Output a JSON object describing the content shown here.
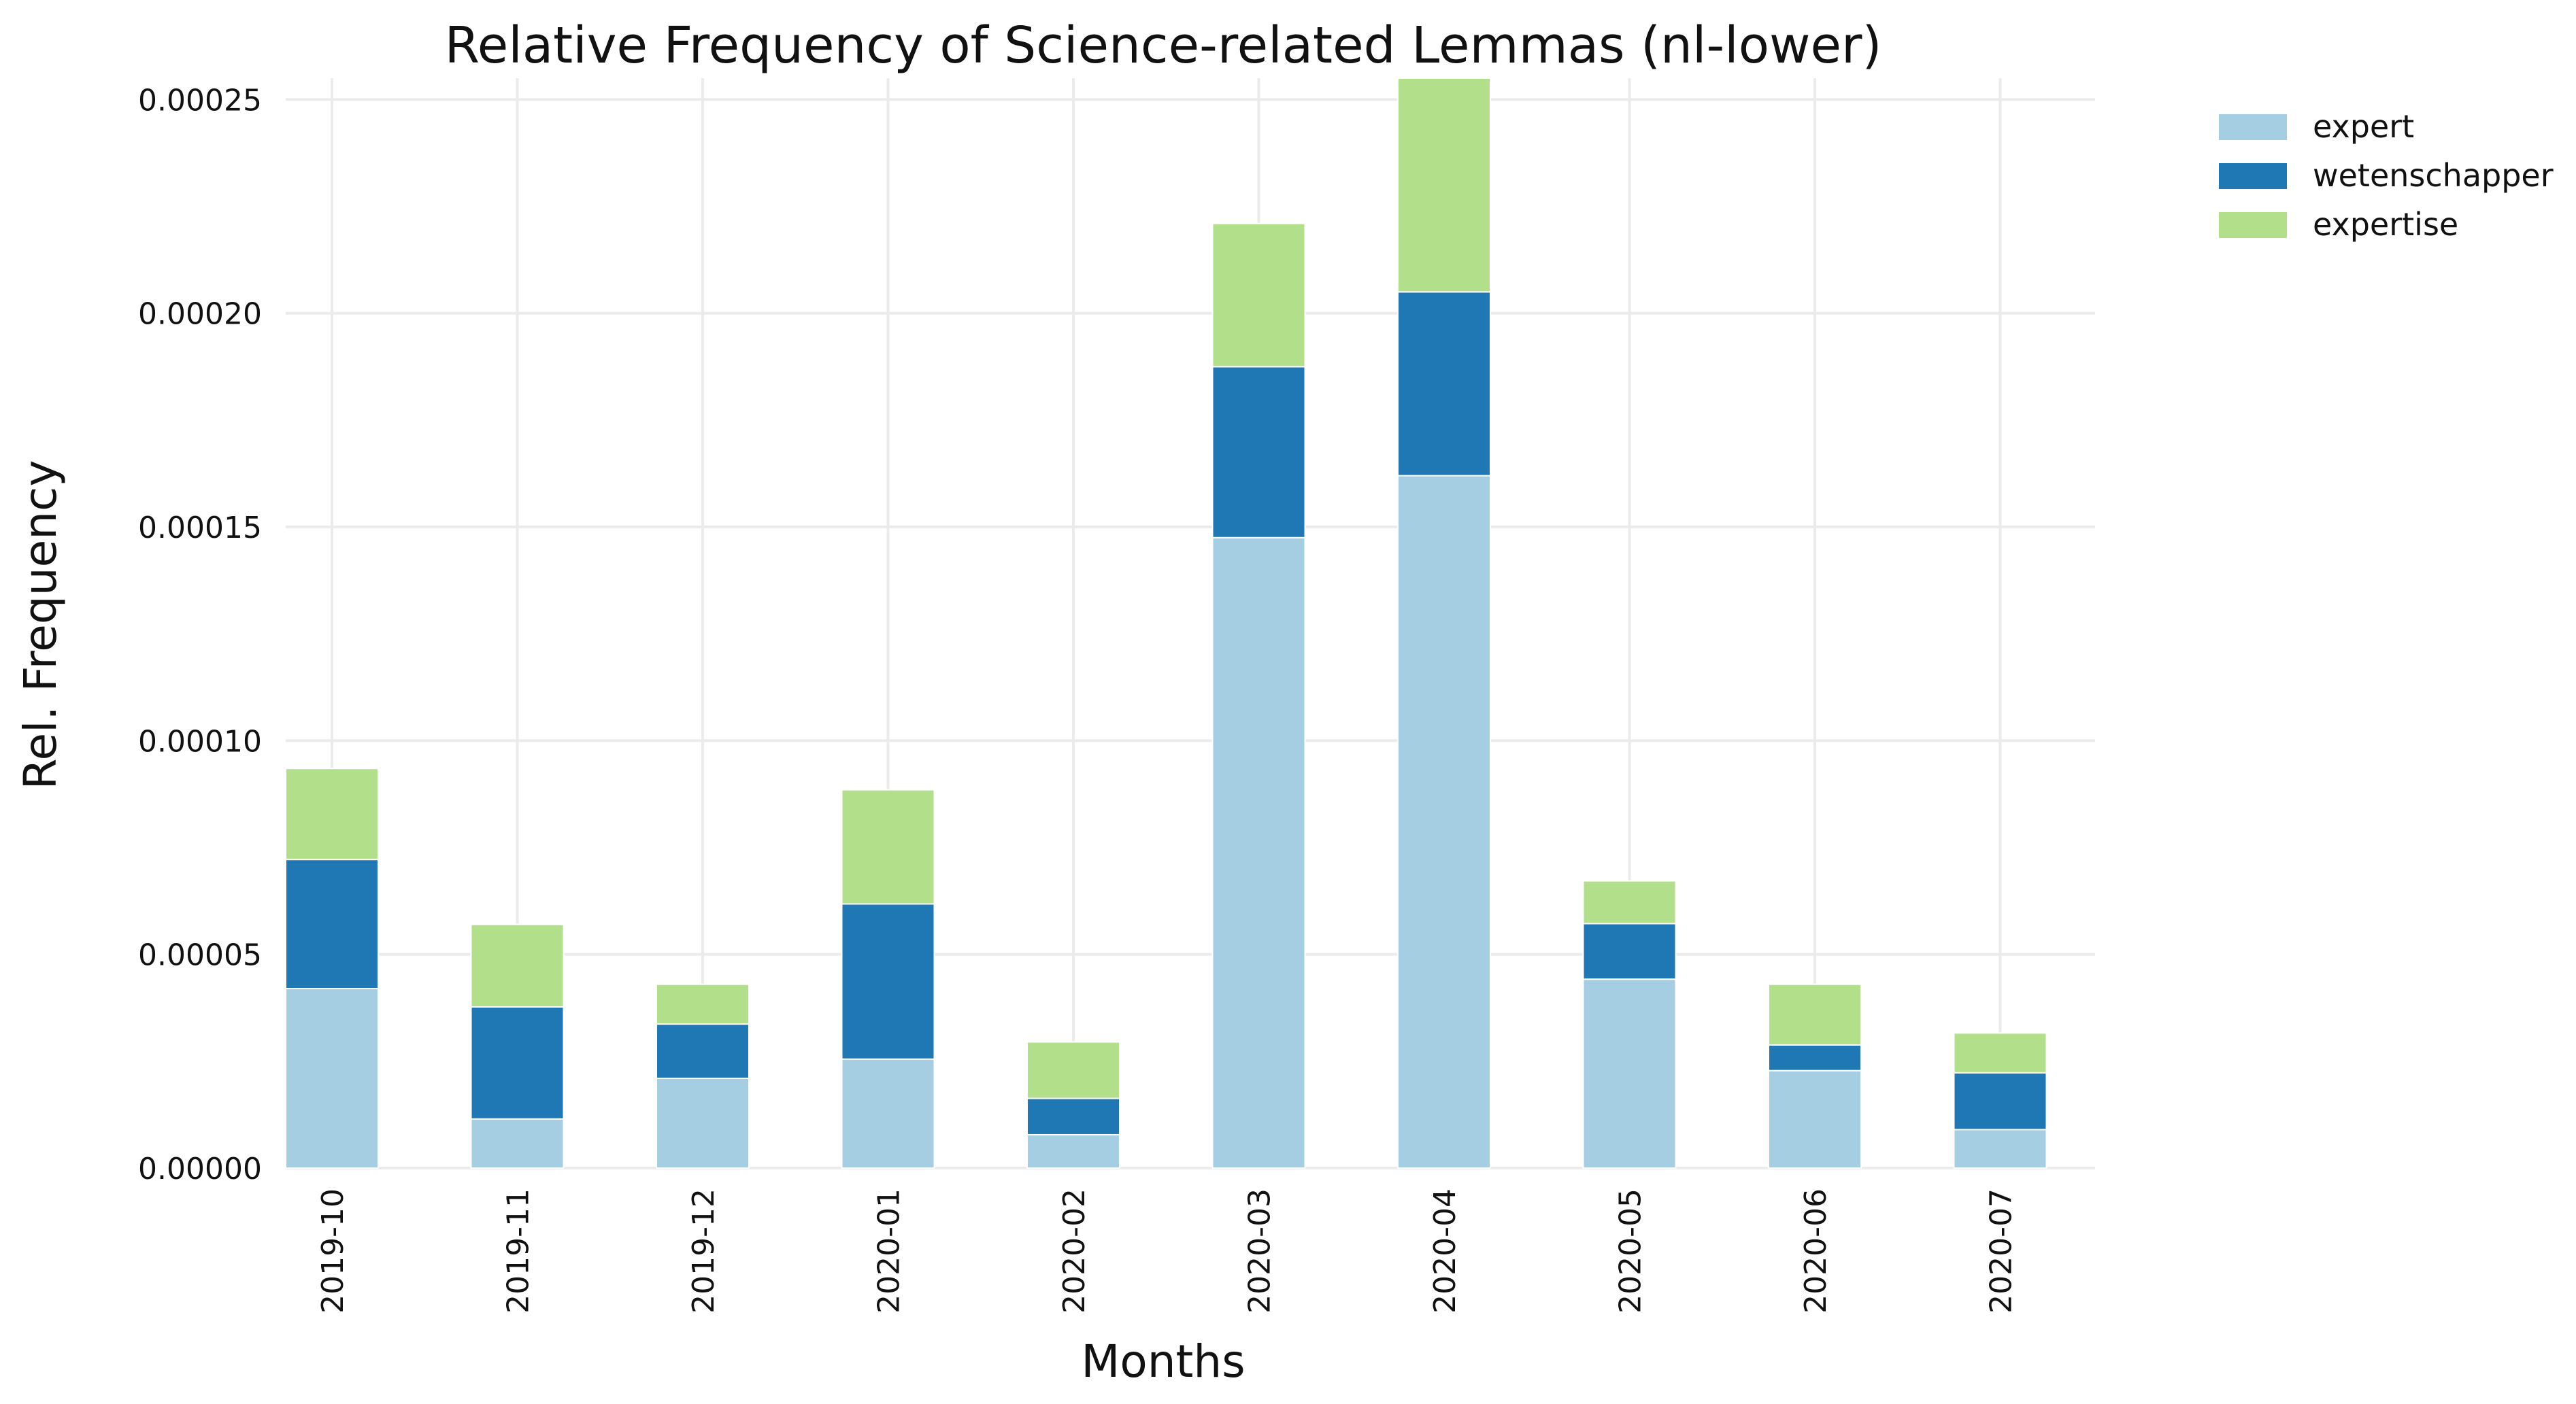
{
  "chart_data": {
    "type": "bar",
    "stacked": true,
    "title": "Relative Frequency of Science-related Lemmas (nl-lower)",
    "xlabel": "Months",
    "ylabel": "Rel. Frequency",
    "categories": [
      "2019-10",
      "2019-11",
      "2019-12",
      "2020-01",
      "2020-02",
      "2020-03",
      "2020-04",
      "2020-05",
      "2020-06",
      "2020-07"
    ],
    "series": [
      {
        "name": "expert",
        "color": "#a6cee3",
        "values": [
          4.2e-05,
          1.15e-05,
          2.1e-05,
          2.55e-05,
          7.8e-06,
          0.0001475,
          0.000162,
          4.42e-05,
          2.28e-05,
          9e-06
        ]
      },
      {
        "name": "wetenschapper",
        "color": "#1f78b4",
        "values": [
          3.02e-05,
          2.62e-05,
          1.27e-05,
          3.63e-05,
          8.5e-06,
          4e-05,
          4.3e-05,
          1.3e-05,
          6e-06,
          1.33e-05
        ]
      },
      {
        "name": "expertise",
        "color": "#b2df8a",
        "values": [
          2.13e-05,
          1.93e-05,
          9.3e-06,
          2.67e-05,
          1.32e-05,
          3.35e-05,
          5e-05,
          1e-05,
          1.42e-05,
          9.3e-06
        ]
      }
    ],
    "ylim": [
      0,
      0.000255
    ],
    "yticks": [
      0,
      5e-05,
      0.0001,
      0.00015,
      0.0002,
      0.00025
    ],
    "ytick_labels": [
      "0.00000",
      "0.00005",
      "0.00010",
      "0.00015",
      "0.00020",
      "0.00025"
    ],
    "grid": true,
    "legend_position": "top-right"
  }
}
